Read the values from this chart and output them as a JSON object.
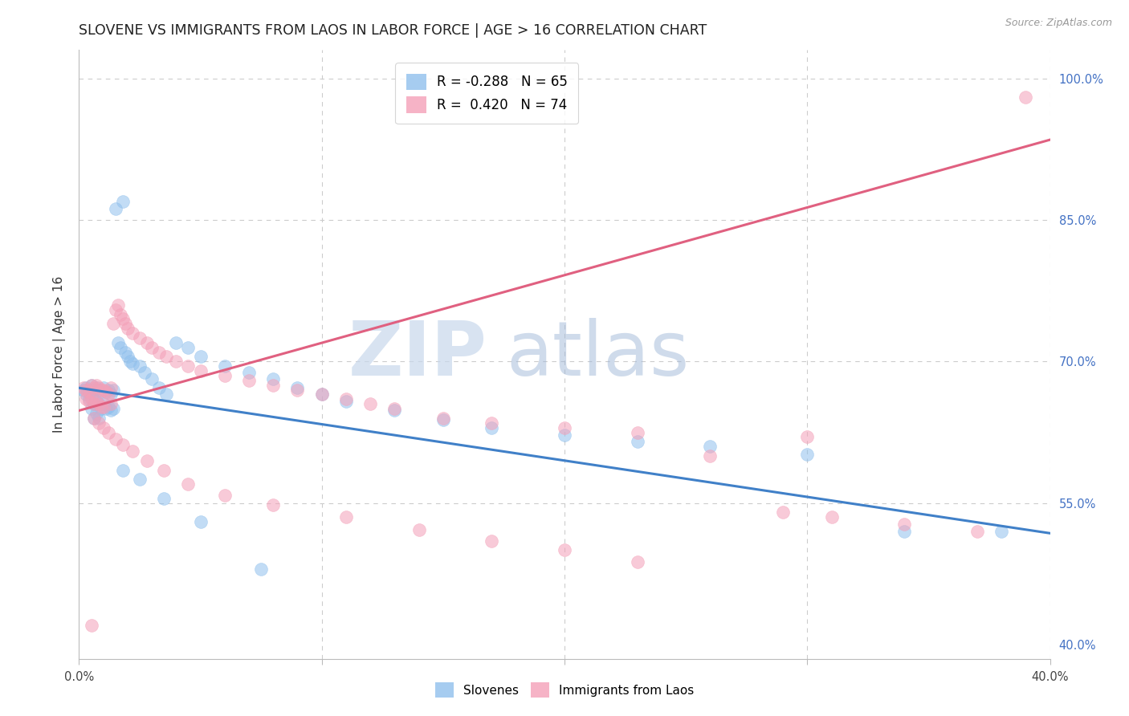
{
  "title": "SLOVENE VS IMMIGRANTS FROM LAOS IN LABOR FORCE | AGE > 16 CORRELATION CHART",
  "source": "Source: ZipAtlas.com",
  "ylabel": "In Labor Force | Age > 16",
  "right_ytick_labels": [
    "40.0%",
    "55.0%",
    "70.0%",
    "85.0%",
    "100.0%"
  ],
  "xlim": [
    0.0,
    0.4
  ],
  "ylim": [
    0.385,
    1.03
  ],
  "legend_blue_R": "-0.288",
  "legend_blue_N": "65",
  "legend_pink_R": "0.420",
  "legend_pink_N": "74",
  "blue_color": "#90C0ED",
  "pink_color": "#F4A0B8",
  "trendline_blue_color": "#4080C8",
  "trendline_pink_color": "#E06080",
  "watermark_zip": "ZIP",
  "watermark_atlas": "atlas",
  "trendline_blue_x0": 0.0,
  "trendline_blue_y0": 0.672,
  "trendline_blue_x1": 0.4,
  "trendline_blue_y1": 0.518,
  "trendline_pink_x0": 0.0,
  "trendline_pink_y0": 0.648,
  "trendline_pink_x1": 0.4,
  "trendline_pink_y1": 0.935,
  "blue_scatter_x": [
    0.002,
    0.003,
    0.003,
    0.004,
    0.004,
    0.005,
    0.005,
    0.005,
    0.006,
    0.006,
    0.006,
    0.007,
    0.007,
    0.007,
    0.008,
    0.008,
    0.008,
    0.009,
    0.009,
    0.01,
    0.01,
    0.011,
    0.011,
    0.012,
    0.012,
    0.013,
    0.013,
    0.014,
    0.014,
    0.015,
    0.016,
    0.017,
    0.018,
    0.019,
    0.02,
    0.021,
    0.022,
    0.025,
    0.027,
    0.03,
    0.033,
    0.036,
    0.04,
    0.045,
    0.05,
    0.06,
    0.07,
    0.08,
    0.09,
    0.1,
    0.11,
    0.13,
    0.15,
    0.17,
    0.2,
    0.23,
    0.26,
    0.3,
    0.34,
    0.38,
    0.018,
    0.025,
    0.035,
    0.05,
    0.075
  ],
  "blue_scatter_y": [
    0.67,
    0.672,
    0.665,
    0.668,
    0.66,
    0.675,
    0.662,
    0.65,
    0.67,
    0.655,
    0.64,
    0.672,
    0.658,
    0.645,
    0.67,
    0.655,
    0.64,
    0.668,
    0.65,
    0.672,
    0.655,
    0.668,
    0.65,
    0.67,
    0.652,
    0.665,
    0.648,
    0.67,
    0.65,
    0.862,
    0.72,
    0.715,
    0.87,
    0.71,
    0.705,
    0.7,
    0.698,
    0.695,
    0.688,
    0.682,
    0.672,
    0.665,
    0.72,
    0.715,
    0.705,
    0.695,
    0.688,
    0.682,
    0.672,
    0.665,
    0.658,
    0.648,
    0.638,
    0.63,
    0.622,
    0.615,
    0.61,
    0.602,
    0.52,
    0.52,
    0.585,
    0.575,
    0.555,
    0.53,
    0.48
  ],
  "pink_scatter_x": [
    0.002,
    0.003,
    0.003,
    0.004,
    0.004,
    0.005,
    0.005,
    0.006,
    0.006,
    0.007,
    0.007,
    0.008,
    0.008,
    0.009,
    0.009,
    0.01,
    0.01,
    0.011,
    0.012,
    0.013,
    0.013,
    0.014,
    0.015,
    0.016,
    0.017,
    0.018,
    0.019,
    0.02,
    0.022,
    0.025,
    0.028,
    0.03,
    0.033,
    0.036,
    0.04,
    0.045,
    0.05,
    0.06,
    0.07,
    0.08,
    0.09,
    0.1,
    0.11,
    0.12,
    0.13,
    0.15,
    0.17,
    0.2,
    0.23,
    0.3,
    0.006,
    0.008,
    0.01,
    0.012,
    0.015,
    0.018,
    0.022,
    0.028,
    0.035,
    0.045,
    0.06,
    0.08,
    0.11,
    0.14,
    0.17,
    0.2,
    0.23,
    0.26,
    0.29,
    0.31,
    0.34,
    0.37,
    0.39,
    0.005
  ],
  "pink_scatter_y": [
    0.672,
    0.67,
    0.66,
    0.668,
    0.658,
    0.675,
    0.66,
    0.672,
    0.655,
    0.675,
    0.658,
    0.672,
    0.655,
    0.67,
    0.652,
    0.67,
    0.652,
    0.668,
    0.665,
    0.672,
    0.655,
    0.74,
    0.755,
    0.76,
    0.75,
    0.745,
    0.74,
    0.735,
    0.73,
    0.725,
    0.72,
    0.715,
    0.71,
    0.705,
    0.7,
    0.695,
    0.69,
    0.685,
    0.68,
    0.675,
    0.67,
    0.665,
    0.66,
    0.655,
    0.65,
    0.64,
    0.635,
    0.63,
    0.625,
    0.62,
    0.64,
    0.635,
    0.63,
    0.625,
    0.618,
    0.612,
    0.605,
    0.595,
    0.585,
    0.57,
    0.558,
    0.548,
    0.535,
    0.522,
    0.51,
    0.5,
    0.488,
    0.6,
    0.54,
    0.535,
    0.528,
    0.52,
    0.98,
    0.42
  ],
  "grid_color": "#CCCCCC",
  "background_color": "#FFFFFF",
  "title_fontsize": 12.5,
  "axis_label_fontsize": 11,
  "tick_fontsize": 10.5,
  "legend_fontsize": 12
}
